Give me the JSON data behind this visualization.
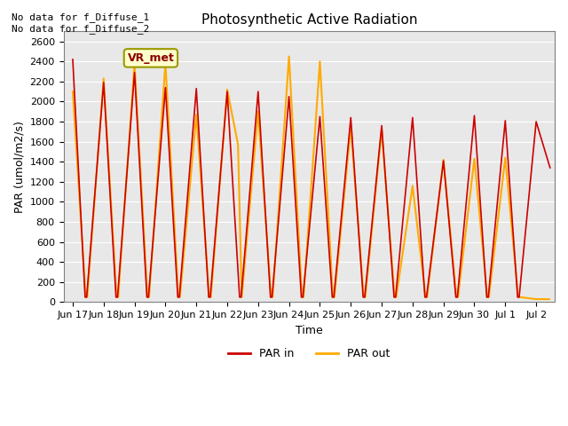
{
  "title": "Photosynthetic Active Radiation",
  "xlabel": "Time",
  "ylabel": "PAR (umol/m2/s)",
  "annotation_text": "No data for f_Diffuse_1\nNo data for f_Diffuse_2",
  "legend_box_label": "VR_met",
  "legend_entries": [
    "PAR in",
    "PAR out"
  ],
  "legend_colors": [
    "#cc0000",
    "#ffaa00"
  ],
  "background_color": "#e8e8e8",
  "ylim": [
    0,
    2700
  ],
  "yticks": [
    0,
    200,
    400,
    600,
    800,
    1000,
    1200,
    1400,
    1600,
    1800,
    2000,
    2200,
    2400,
    2600
  ],
  "xtick_labels": [
    "Jun 17",
    "Jun 18",
    "Jun 19",
    "Jun 20",
    "Jun 21",
    "Jun 22",
    "Jun 23",
    "Jun 24",
    "Jun 25",
    "Jun 26",
    "Jun 27",
    "Jun 28",
    "Jun 29",
    "Jun 30",
    "Jul 1",
    "Jul 2"
  ],
  "xtick_positions": [
    0,
    1,
    2,
    3,
    4,
    5,
    6,
    7,
    8,
    9,
    10,
    11,
    12,
    13,
    14,
    15
  ],
  "par_in_x": [
    0,
    0.4,
    0.45,
    1.0,
    1.4,
    1.45,
    2.0,
    2.4,
    2.45,
    3.0,
    3.4,
    3.45,
    4.0,
    4.4,
    4.45,
    5.0,
    5.4,
    5.45,
    6.0,
    6.4,
    6.45,
    7.0,
    7.4,
    7.45,
    8.0,
    8.4,
    8.45,
    9.0,
    9.4,
    9.45,
    10.0,
    10.4,
    10.45,
    11.0,
    11.4,
    11.45,
    12.0,
    12.4,
    12.45,
    13.0,
    13.4,
    13.45,
    14.0,
    14.4,
    14.45,
    15.0,
    15.45
  ],
  "par_in_y": [
    2420,
    50,
    50,
    2190,
    50,
    50,
    2290,
    50,
    50,
    2140,
    50,
    50,
    2130,
    50,
    50,
    2100,
    50,
    50,
    2100,
    50,
    50,
    2050,
    50,
    50,
    1850,
    50,
    50,
    1840,
    50,
    50,
    1760,
    50,
    50,
    1840,
    50,
    50,
    1410,
    50,
    50,
    1860,
    50,
    50,
    1810,
    50,
    50,
    1800,
    1340
  ],
  "par_out_x": [
    0,
    0.42,
    0.47,
    1.0,
    1.42,
    1.47,
    2.0,
    2.42,
    2.47,
    3.0,
    3.42,
    3.47,
    4.0,
    4.42,
    4.47,
    5.0,
    5.35,
    5.47,
    6.0,
    6.42,
    6.47,
    7.0,
    7.42,
    7.47,
    8.0,
    8.42,
    8.47,
    9.0,
    9.42,
    9.47,
    10.0,
    10.42,
    10.47,
    11.0,
    11.42,
    11.47,
    12.0,
    12.42,
    12.47,
    13.0,
    13.42,
    13.47,
    14.0,
    14.42,
    14.47,
    15.0,
    15.42
  ],
  "par_out_y": [
    2100,
    50,
    50,
    2230,
    50,
    50,
    2380,
    50,
    50,
    2380,
    50,
    50,
    1870,
    50,
    50,
    2120,
    1570,
    50,
    1900,
    50,
    50,
    2450,
    50,
    50,
    2400,
    50,
    50,
    1750,
    50,
    50,
    1720,
    50,
    50,
    1160,
    50,
    50,
    1420,
    50,
    50,
    1430,
    50,
    50,
    1440,
    50,
    50,
    30,
    30
  ]
}
